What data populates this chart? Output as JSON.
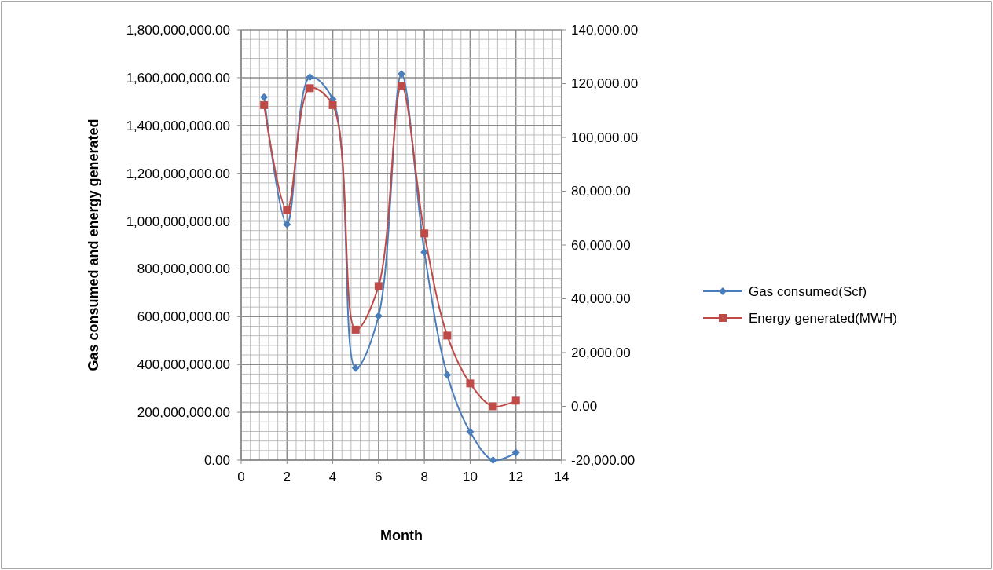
{
  "chart_data": {
    "type": "line",
    "xlabel": "Month",
    "ylabel": "Gas consumed and energy generated",
    "x": [
      1,
      2,
      3,
      4,
      5,
      6,
      7,
      8,
      9,
      10,
      11,
      12
    ],
    "series": [
      {
        "name": "Gas consumed(Scf)",
        "color": "#4a7ebb",
        "marker": "diamond",
        "values": [
          1518000000,
          986000000,
          1602000000,
          1509000000,
          385000000,
          603000000,
          1615000000,
          870000000,
          356000000,
          118000000,
          0,
          31000000
        ]
      },
      {
        "name": "Energy generated(MWH)",
        "color": "#be4b48",
        "marker": "square",
        "axis": "y2",
        "values": [
          112000,
          73000,
          118300,
          112000,
          28500,
          44700,
          119200,
          64300,
          26300,
          8500,
          0,
          2100
        ]
      }
    ],
    "xlim": [
      0,
      14
    ],
    "xticks": [
      0,
      2,
      4,
      6,
      8,
      10,
      12,
      14
    ],
    "ylim": [
      0,
      1800000000
    ],
    "yticks": [
      {
        "value": 0,
        "label": "0.00"
      },
      {
        "value": 200000000,
        "label": "200,000,000.00"
      },
      {
        "value": 400000000,
        "label": "400,000,000.00"
      },
      {
        "value": 600000000,
        "label": "600,000,000.00"
      },
      {
        "value": 800000000,
        "label": "800,000,000.00"
      },
      {
        "value": 1000000000,
        "label": "1,000,000,000.00"
      },
      {
        "value": 1200000000,
        "label": "1,200,000,000.00"
      },
      {
        "value": 1400000000,
        "label": "1,400,000,000.00"
      },
      {
        "value": 1600000000,
        "label": "1,600,000,000.00"
      },
      {
        "value": 1800000000,
        "label": "1,800,000,000.00"
      }
    ],
    "y2lim": [
      -20000,
      140000
    ],
    "y2ticks": [
      {
        "value": -20000,
        "label": "-20,000.00"
      },
      {
        "value": 0,
        "label": "0.00"
      },
      {
        "value": 20000,
        "label": "20,000.00"
      },
      {
        "value": 40000,
        "label": "40,000.00"
      },
      {
        "value": 60000,
        "label": "60,000.00"
      },
      {
        "value": 80000,
        "label": "80,000.00"
      },
      {
        "value": 100000,
        "label": "100,000.00"
      },
      {
        "value": 120000,
        "label": "120,000.00"
      },
      {
        "value": 140000,
        "label": "140,000.00"
      }
    ],
    "grid": true,
    "legend": "right"
  }
}
